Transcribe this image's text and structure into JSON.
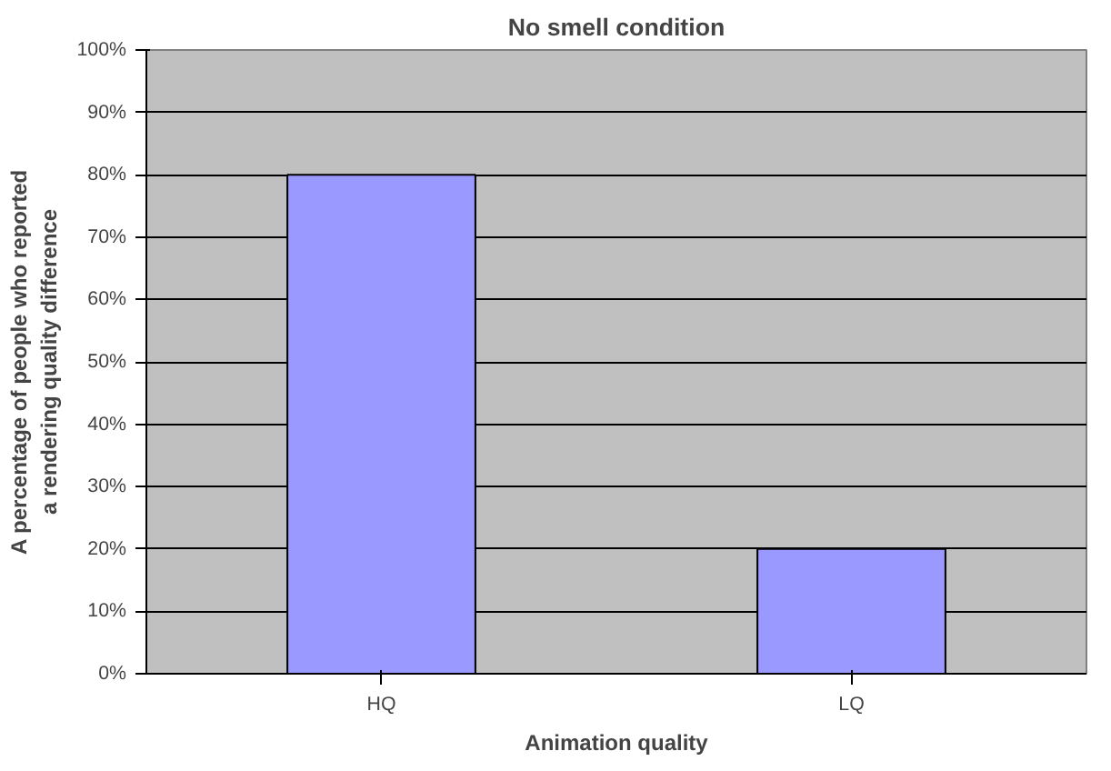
{
  "chart_data": {
    "type": "bar",
    "title": "No smell condition",
    "xlabel": "Animation quality",
    "ylabel": "A percentage of people who reported a rendering quality difference",
    "categories": [
      "HQ",
      "LQ"
    ],
    "values": [
      80,
      20
    ],
    "color": "#9999ff",
    "ylim": [
      0,
      100
    ],
    "yticks": [
      {
        "value": 0,
        "label": "0%"
      },
      {
        "value": 10,
        "label": "10%"
      },
      {
        "value": 20,
        "label": "20%"
      },
      {
        "value": 30,
        "label": "30%"
      },
      {
        "value": 40,
        "label": "40%"
      },
      {
        "value": 50,
        "label": "50%"
      },
      {
        "value": 60,
        "label": "60%"
      },
      {
        "value": 70,
        "label": "70%"
      },
      {
        "value": 80,
        "label": "80%"
      },
      {
        "value": 90,
        "label": "90%"
      },
      {
        "value": 100,
        "label": "100%"
      }
    ],
    "grid": "y"
  }
}
